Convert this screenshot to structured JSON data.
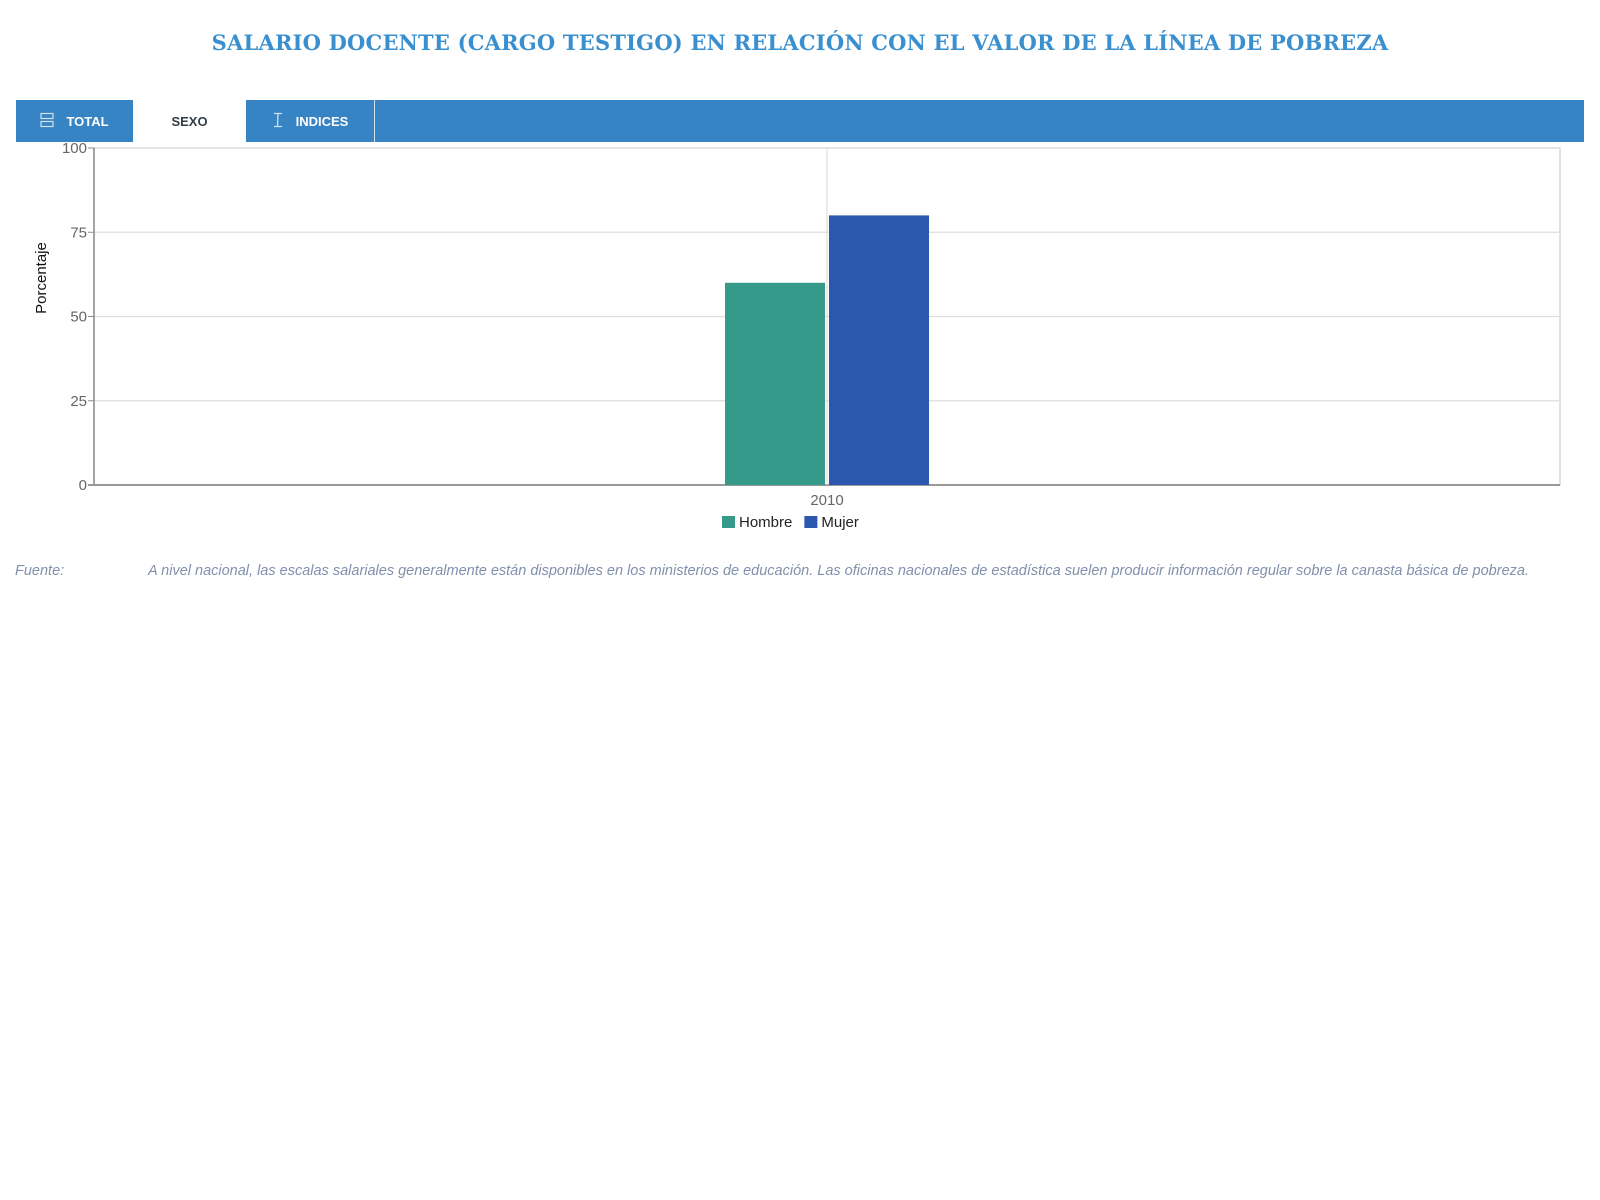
{
  "header": {
    "title": "SALARIO DOCENTE (CARGO TESTIGO) EN RELACIÓN CON EL VALOR DE LA LÍNEA DE POBREZA"
  },
  "tabs": {
    "total": {
      "label": "TOTAL",
      "icon": "stacked-rows-icon"
    },
    "sexo": {
      "label": "SEXO",
      "active": true
    },
    "indices": {
      "label": "INDICES",
      "icon": "text-cursor-icon"
    }
  },
  "colors": {
    "accent": "#3784c4",
    "title": "#3a8fcf",
    "hombre": "#369a8a",
    "mujer": "#2b58ae"
  },
  "chart_data": {
    "type": "bar",
    "categories": [
      "2010"
    ],
    "series": [
      {
        "name": "Hombre",
        "values": [
          60
        ],
        "color": "#369a8a"
      },
      {
        "name": "Mujer",
        "values": [
          80
        ],
        "color": "#2b58ae"
      }
    ],
    "ylabel": "Porcentaje",
    "ylim": [
      0,
      100
    ],
    "yticks": [
      0,
      25,
      50,
      75,
      100
    ],
    "grid": true,
    "legend": "bottom-center"
  },
  "source": {
    "label": "Fuente:",
    "text": "A nivel nacional, las escalas salariales generalmente están disponibles en los ministerios de educación. Las oficinas nacionales de estadística suelen producir información regular sobre la canasta básica de pobreza."
  }
}
